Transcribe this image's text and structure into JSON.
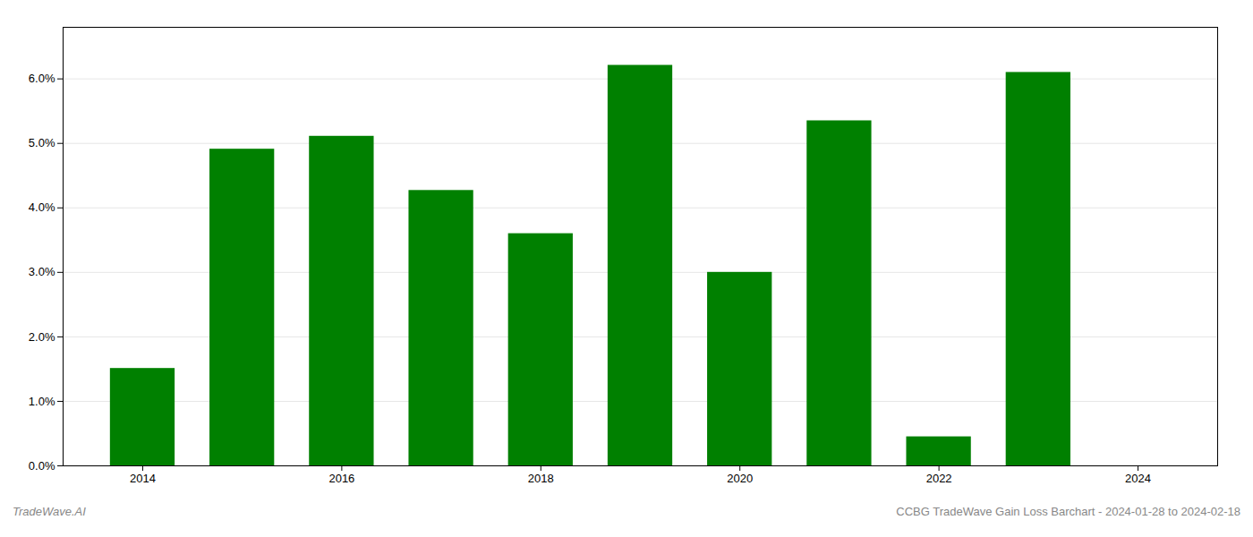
{
  "chart_data": {
    "type": "bar",
    "x": [
      2014,
      2015,
      2016,
      2017,
      2018,
      2019,
      2020,
      2021,
      2022,
      2023
    ],
    "values": [
      0.0151,
      0.0491,
      0.0511,
      0.0427,
      0.036,
      0.0621,
      0.03,
      0.0535,
      0.0045,
      0.061
    ],
    "color": "#008000",
    "xlim": [
      2013.2,
      2024.8
    ],
    "xticks": [
      2014,
      2016,
      2018,
      2020,
      2022,
      2024
    ],
    "ylim": [
      0.0,
      0.068
    ],
    "yticks": [
      {
        "value": 0.0,
        "label": "0.0%"
      },
      {
        "value": 0.01,
        "label": "1.0%"
      },
      {
        "value": 0.02,
        "label": "2.0%"
      },
      {
        "value": 0.03,
        "label": "3.0%"
      },
      {
        "value": 0.04,
        "label": "4.0%"
      },
      {
        "value": 0.05,
        "label": "5.0%"
      },
      {
        "value": 0.06,
        "label": "6.0%"
      }
    ],
    "grid": true,
    "annotations": [
      "TradeWave.AI",
      "CCBG TradeWave Gain Loss Barchart - 2024-01-28 to 2024-02-18"
    ]
  }
}
